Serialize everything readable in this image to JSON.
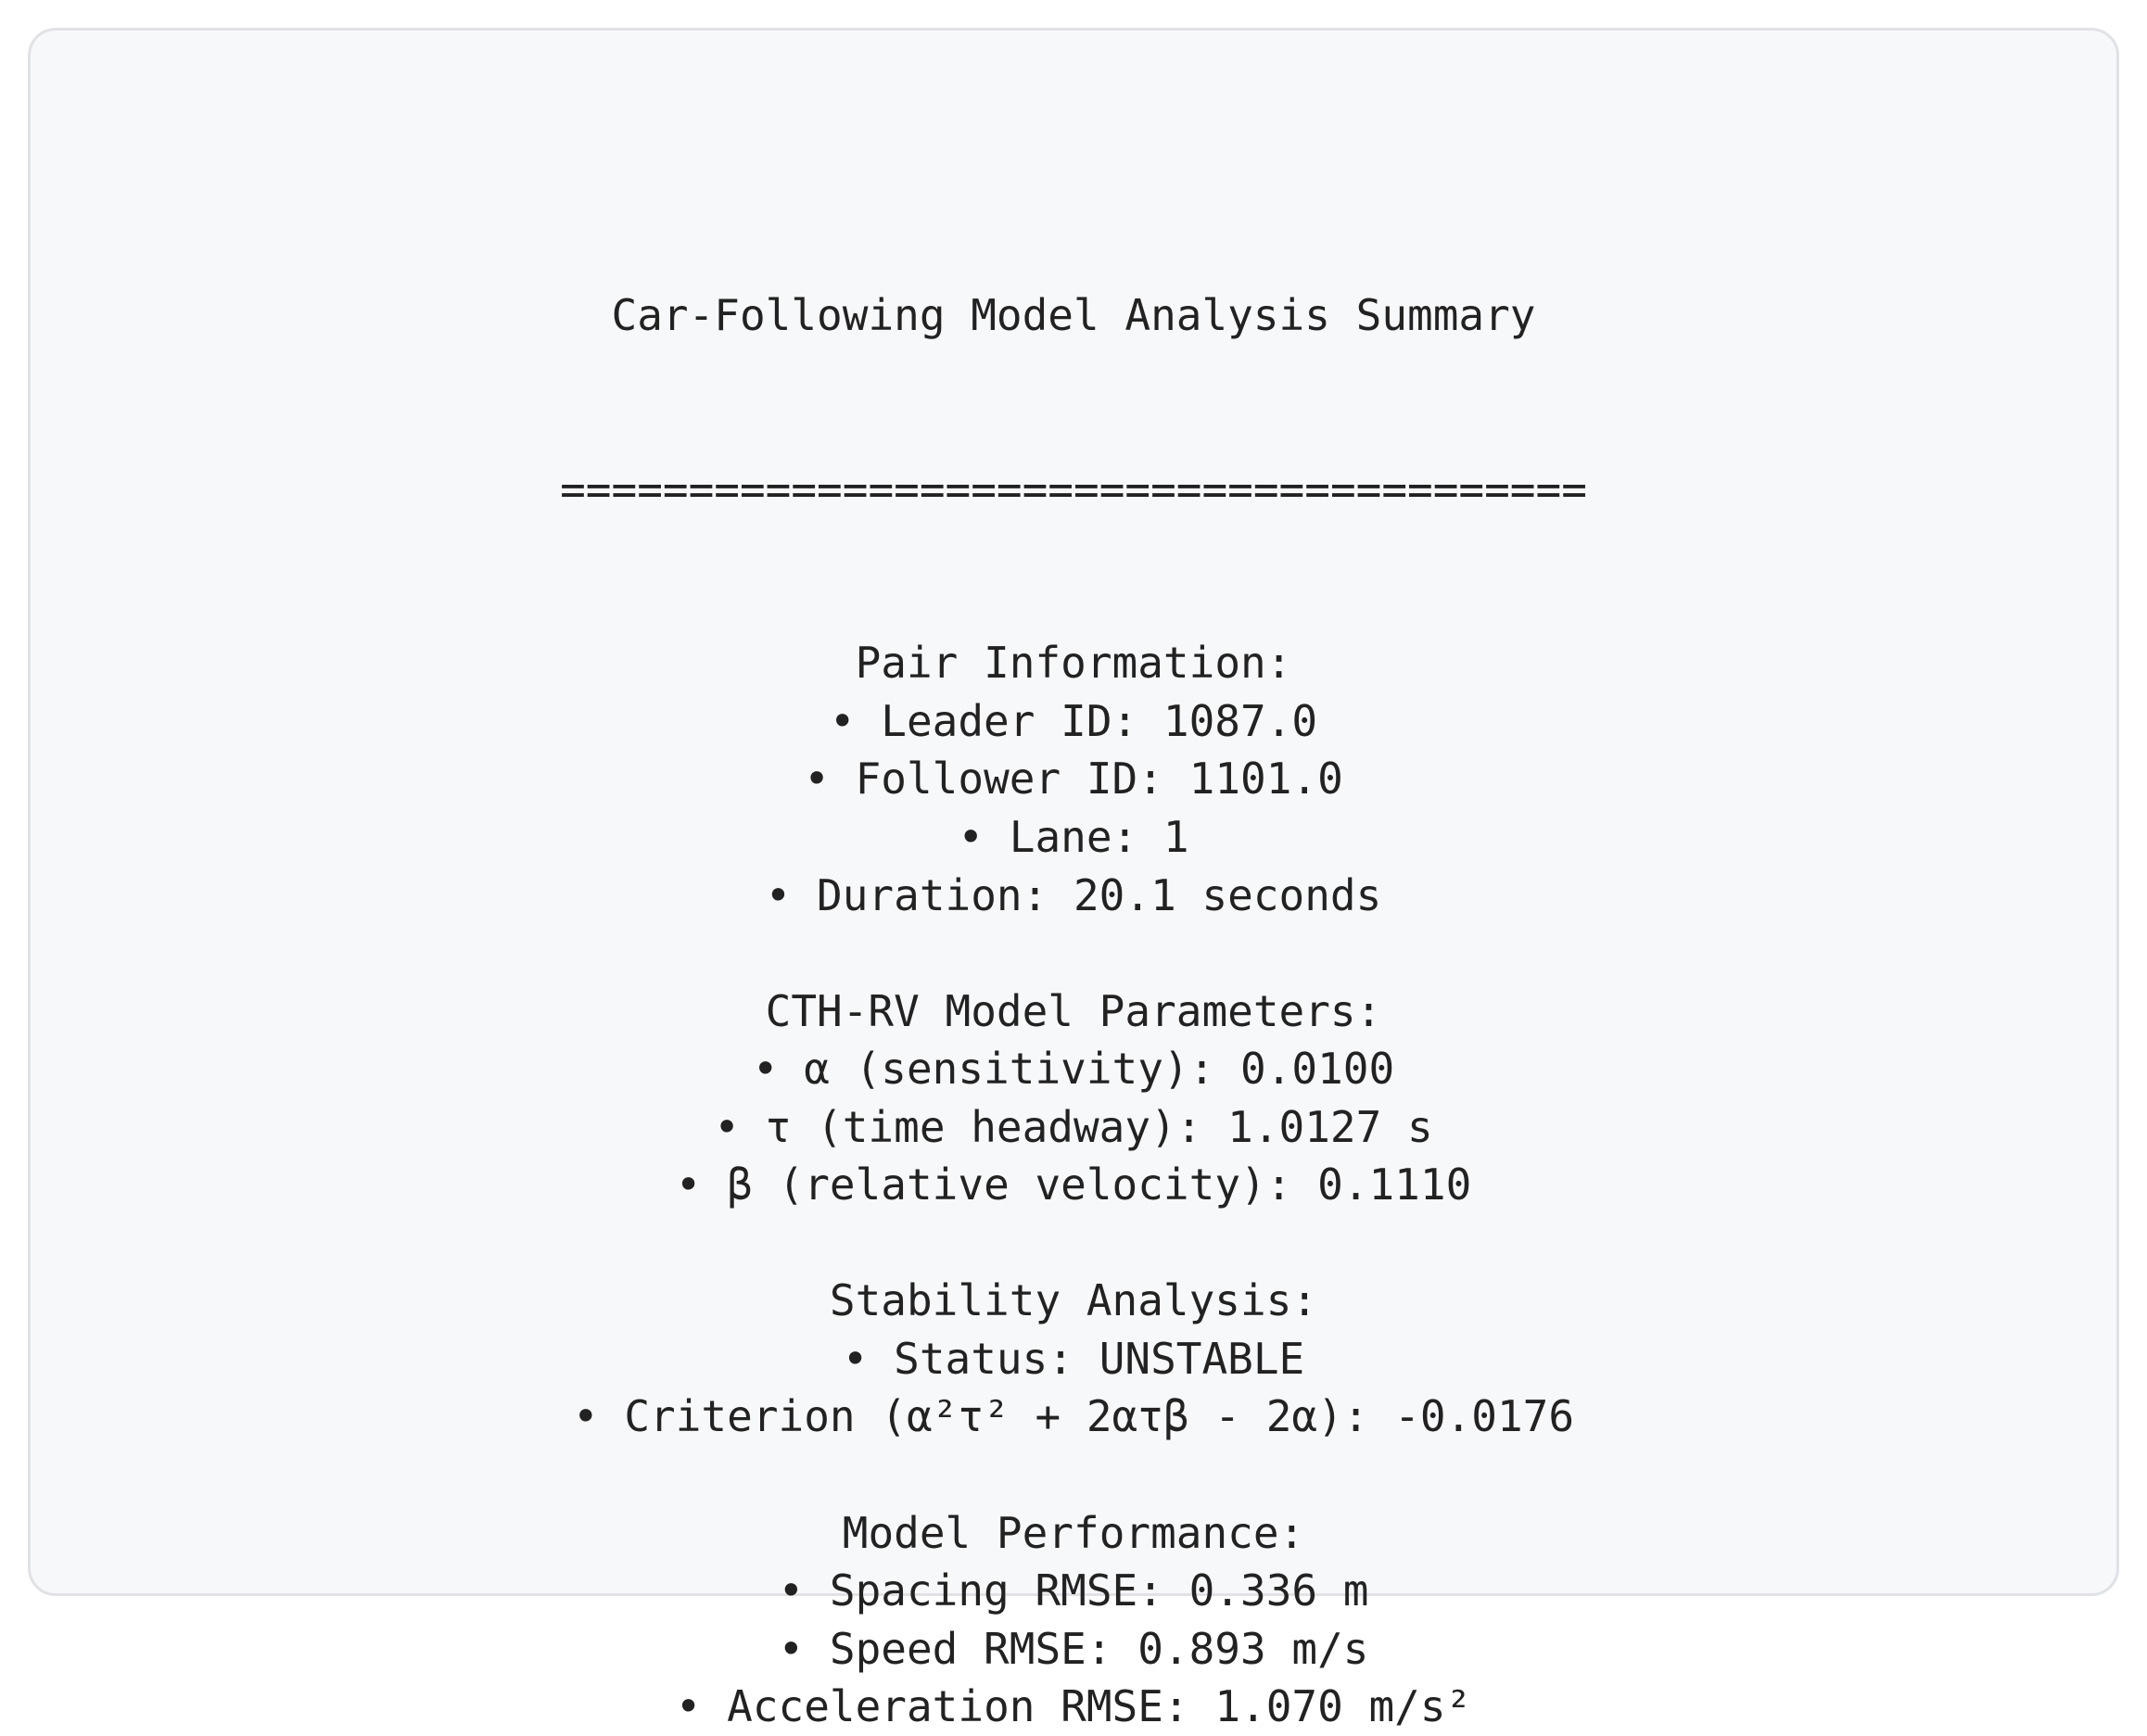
{
  "title": "Car-Following Model Analysis Summary",
  "separator": "========================================",
  "sections": [
    {
      "heading": "Pair Information:",
      "items": [
        "• Leader ID: 1087.0",
        "• Follower ID: 1101.0",
        "• Lane: 1",
        "• Duration: 20.1 seconds"
      ]
    },
    {
      "heading": "CTH-RV Model Parameters:",
      "items": [
        "• α (sensitivity): 0.0100",
        "• τ (time headway): 1.0127 s",
        "• β (relative velocity): 0.1110"
      ]
    },
    {
      "heading": "Stability Analysis:",
      "items": [
        "• Status: UNSTABLE",
        "• Criterion (α²τ² + 2ατβ - 2α): -0.0176"
      ]
    },
    {
      "heading": "Model Performance:",
      "items": [
        "• Spacing RMSE: 0.336 m",
        "• Speed RMSE: 0.893 m/s",
        "• Acceleration RMSE: 1.070 m/s²"
      ]
    }
  ]
}
